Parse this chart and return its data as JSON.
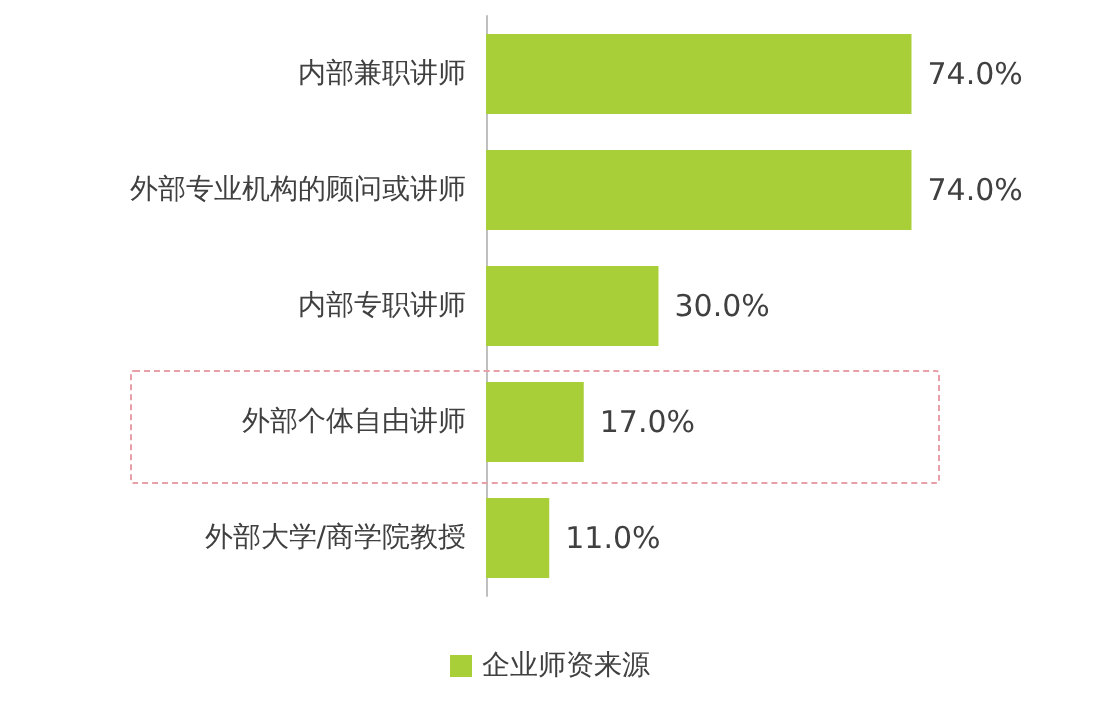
{
  "chart_data": {
    "type": "bar",
    "orientation": "horizontal",
    "categories": [
      "内部兼职讲师",
      "外部专业机构的顾问或讲师",
      "内部专职讲师",
      "外部个体自由讲师",
      "外部大学/商学院教授"
    ],
    "series": [
      {
        "name": "企业师资来源",
        "color": "#a9cf38",
        "values": [
          74.0,
          74.0,
          30.0,
          17.0,
          11.0
        ],
        "value_labels": [
          "74.0%",
          "74.0%",
          "30.0%",
          "17.0%",
          "11.0%"
        ]
      }
    ],
    "legend": "bottom"
  }
}
